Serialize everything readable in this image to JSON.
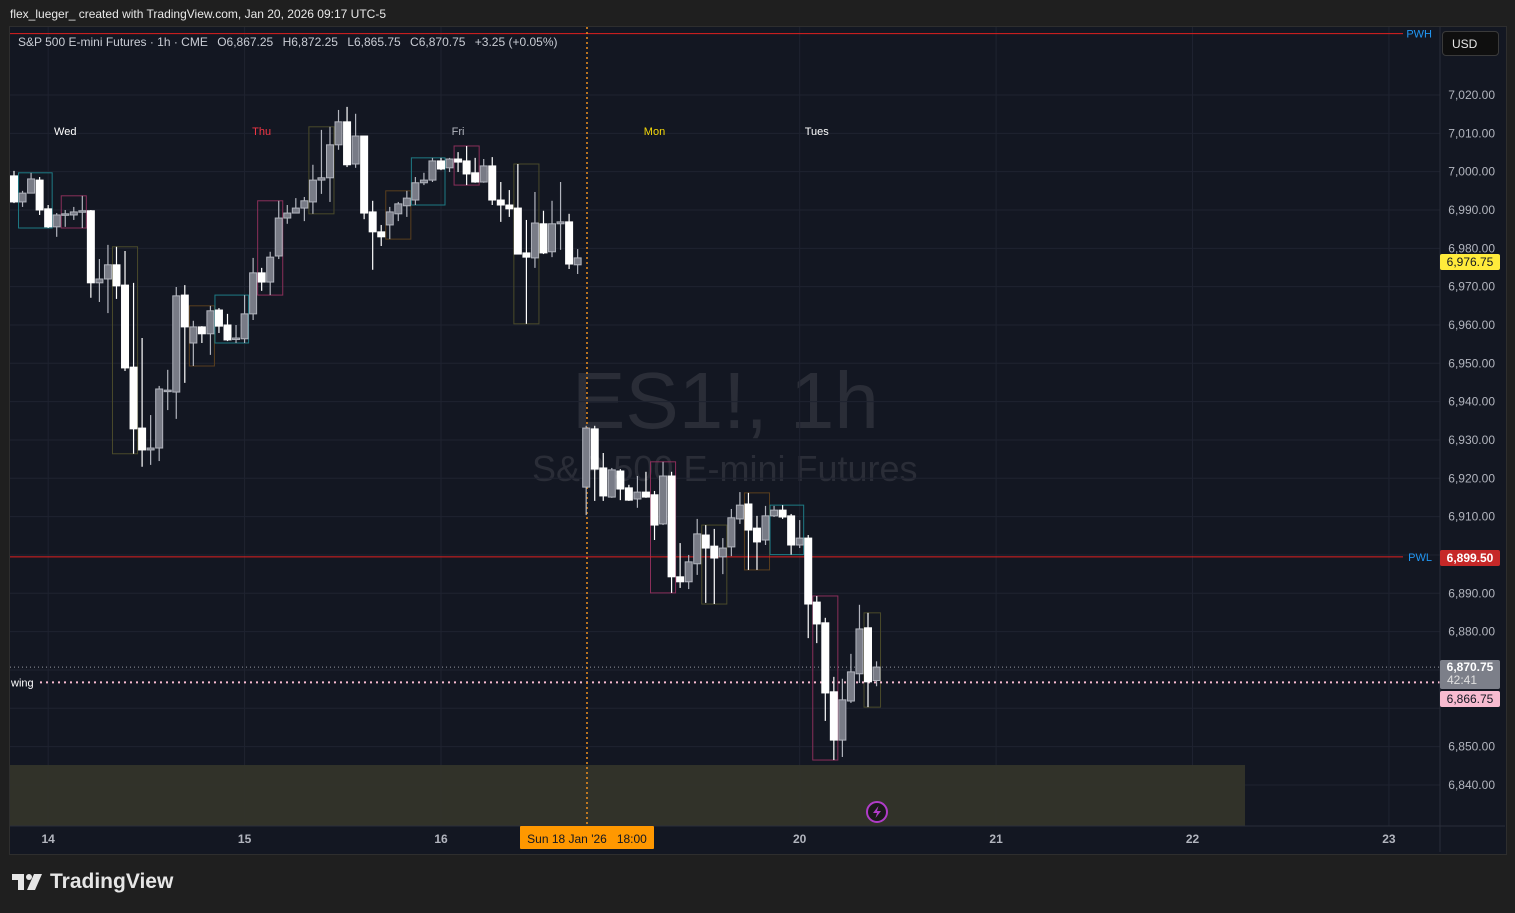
{
  "credit": "flex_lueger_ created with TradingView.com, Jan 20, 2026 09:17 UTC-5",
  "legend": {
    "symbol": "S&P 500 E-mini Futures · 1h · CME",
    "open": "O6,867.25",
    "high": "H6,872.25",
    "low": "L6,865.75",
    "close": "C6,870.75",
    "change": "+3.25 (+0.05%)"
  },
  "watermark": {
    "ticker": "ES1!, 1h",
    "name": "S&P 500 E-mini Futures"
  },
  "currency_button": "USD",
  "brand": "TradingView",
  "colors": {
    "background": "#131722",
    "down_candle": "#ffffff",
    "up_candle": "#787b86",
    "level_line": "#e01f1f",
    "level_label": "#2962ff",
    "session_line": "#f0901e",
    "zone": "#33342a",
    "swing": "#f8bbd0"
  },
  "chart_data": {
    "type": "candlestick",
    "interval": "1h",
    "ylim": [
      6830,
      7040
    ],
    "grid": true,
    "y_ticks": [
      "7,020.00",
      "7,010.00",
      "7,000.00",
      "6,990.00",
      "6,980.00",
      "6,970.00",
      "6,960.00",
      "6,950.00",
      "6,940.00",
      "6,930.00",
      "6,920.00",
      "6,910.00",
      "6,890.00",
      "6,880.00",
      "6,850.00",
      "6,840.00"
    ],
    "y_tick_values": [
      7020,
      7010,
      7000,
      6990,
      6980,
      6970,
      6960,
      6950,
      6940,
      6930,
      6920,
      6910,
      6890,
      6880,
      6850,
      6840
    ],
    "x_ticks": [
      "14",
      "15",
      "16",
      "20",
      "21",
      "22",
      "23"
    ],
    "day_labels": [
      {
        "text": "Wed",
        "color": "#ffffff"
      },
      {
        "text": "Thu",
        "color": "#f23645"
      },
      {
        "text": "Fri",
        "color": "#b2b5be"
      },
      {
        "text": "Mon",
        "color": "#f5d90a"
      },
      {
        "text": "Tues",
        "color": "#ffffff"
      }
    ],
    "candles_ohlc": [
      [
        6998.9,
        7000.2,
        6991.8,
        6992.1
      ],
      [
        6992.1,
        6995.0,
        6990.8,
        6994.4
      ],
      [
        6994.4,
        6999.7,
        6994.4,
        6998.1
      ],
      [
        6997.8,
        6998.6,
        6988.7,
        6990.0
      ],
      [
        6990.3,
        6991.3,
        6985.3,
        6985.6
      ],
      [
        6985.6,
        6989.2,
        6983.0,
        6988.7
      ],
      [
        6989.0,
        6990.0,
        6985.6,
        6989.0
      ],
      [
        6988.7,
        6990.8,
        6987.4,
        6989.5
      ],
      [
        6989.8,
        6993.7,
        6985.3,
        6989.8
      ],
      [
        6989.8,
        6990.0,
        6967.1,
        6971.0
      ],
      [
        6971.0,
        6977.2,
        6966.0,
        6972.0
      ],
      [
        6972.0,
        6980.9,
        6963.1,
        6975.7
      ],
      [
        6975.7,
        6980.4,
        6966.8,
        6970.2
      ],
      [
        6970.4,
        6979.3,
        6948.0,
        6948.8
      ],
      [
        6949.0,
        6971.0,
        6926.4,
        6932.9
      ],
      [
        6933.1,
        6956.6,
        6923.0,
        6927.4
      ],
      [
        6927.4,
        6936.5,
        6923.5,
        6927.9
      ],
      [
        6927.9,
        6944.1,
        6924.5,
        6943.3
      ],
      [
        6943.0,
        6948.3,
        6937.8,
        6943.0
      ],
      [
        6942.5,
        6969.9,
        6935.5,
        6967.6
      ],
      [
        6967.8,
        6970.4,
        6944.9,
        6959.5
      ],
      [
        6955.3,
        6961.1,
        6949.3,
        6959.5
      ],
      [
        6959.5,
        6959.7,
        6955.3,
        6957.7
      ],
      [
        6957.7,
        6965.0,
        6952.2,
        6963.7
      ],
      [
        6963.9,
        6964.4,
        6957.9,
        6959.7
      ],
      [
        6960.0,
        6962.9,
        6955.8,
        6956.1
      ],
      [
        6956.6,
        6960.0,
        6955.3,
        6956.6
      ],
      [
        6956.4,
        6967.8,
        6955.3,
        6962.9
      ],
      [
        6962.9,
        6977.5,
        6961.3,
        6973.6
      ],
      [
        6973.6,
        6974.9,
        6968.9,
        6971.2
      ],
      [
        6971.2,
        6979.1,
        6967.8,
        6977.7
      ],
      [
        6978.0,
        6992.4,
        6977.2,
        6987.9
      ],
      [
        6987.9,
        6991.3,
        6986.4,
        6989.2
      ],
      [
        6989.2,
        6993.1,
        6989.2,
        6990.5
      ],
      [
        6990.5,
        6993.4,
        6987.1,
        6992.4
      ],
      [
        6992.1,
        7001.8,
        6989.0,
        6997.8
      ],
      [
        6997.8,
        7010.9,
        6994.2,
        6998.4
      ],
      [
        6998.4,
        7011.7,
        6992.1,
        7007.0
      ],
      [
        7007.0,
        7016.1,
        7005.7,
        7013.0
      ],
      [
        7013.0,
        7016.9,
        7001.2,
        7001.8
      ],
      [
        7002.0,
        7015.1,
        7001.0,
        7009.3
      ],
      [
        7009.3,
        7009.3,
        6987.6,
        6989.2
      ],
      [
        6989.5,
        6992.4,
        6974.4,
        6984.3
      ],
      [
        6984.3,
        6986.1,
        6980.6,
        6983.0
      ],
      [
        6986.1,
        6990.8,
        6982.4,
        6989.5
      ],
      [
        6989.0,
        6992.1,
        6987.1,
        6991.6
      ],
      [
        6991.1,
        6995.0,
        6988.2,
        6993.1
      ],
      [
        6992.6,
        6998.6,
        6991.3,
        6997.1
      ],
      [
        6997.1,
        6999.7,
        6996.5,
        6997.8
      ],
      [
        6997.8,
        7003.6,
        6997.3,
        7002.8
      ],
      [
        7002.8,
        7003.6,
        7000.4,
        7000.7
      ],
      [
        7001.0,
        7003.6,
        6999.9,
        7003.3
      ],
      [
        7003.3,
        7005.1,
        6999.9,
        7002.5
      ],
      [
        7002.8,
        7006.7,
        6996.5,
        6999.4
      ],
      [
        6999.7,
        7003.6,
        6997.1,
        6997.3
      ],
      [
        6997.3,
        7003.3,
        6997.1,
        7001.5
      ],
      [
        7001.5,
        7003.8,
        6991.3,
        6992.6
      ],
      [
        6992.6,
        6997.3,
        6986.9,
        6991.3
      ],
      [
        6991.3,
        6995.2,
        6988.2,
        6990.3
      ],
      [
        6990.5,
        7002.0,
        6978.5,
        6978.5
      ],
      [
        6978.8,
        6987.4,
        6960.3,
        6977.7
      ],
      [
        6977.5,
        6994.7,
        6974.9,
        6986.6
      ],
      [
        6986.4,
        6989.8,
        6978.5,
        6978.8
      ],
      [
        6979.1,
        6992.4,
        6977.7,
        6986.4
      ],
      [
        6986.4,
        6997.3,
        6979.6,
        6986.9
      ],
      [
        6986.9,
        6989.0,
        6974.6,
        6975.9
      ],
      [
        6975.7,
        6979.8,
        6973.3,
        6977.5
      ],
      [
        6917.7,
        6933.7,
        6910.4,
        6933.1
      ],
      [
        6932.9,
        6933.7,
        6914.1,
        6922.4
      ],
      [
        6922.7,
        6926.6,
        6914.1,
        6915.4
      ],
      [
        6915.1,
        6922.7,
        6914.9,
        6922.2
      ],
      [
        6921.9,
        6922.4,
        6914.3,
        6917.2
      ],
      [
        6917.5,
        6918.3,
        6914.1,
        6914.3
      ],
      [
        6914.6,
        6920.6,
        6912.3,
        6916.4
      ],
      [
        6916.4,
        6921.7,
        6914.9,
        6915.1
      ],
      [
        6915.7,
        6916.7,
        6903.9,
        6907.8
      ],
      [
        6908.1,
        6924.3,
        6907.8,
        6920.6
      ],
      [
        6920.6,
        6921.7,
        6890.1,
        6894.3
      ],
      [
        6894.3,
        6903.1,
        6891.4,
        6893.0
      ],
      [
        6893.0,
        6900.0,
        6891.1,
        6898.2
      ],
      [
        6897.7,
        6909.4,
        6894.8,
        6905.5
      ],
      [
        6905.2,
        6907.8,
        6887.5,
        6901.8
      ],
      [
        6902.3,
        6906.8,
        6887.2,
        6899.2
      ],
      [
        6899.5,
        6904.4,
        6895.0,
        6901.8
      ],
      [
        6902.1,
        6912.0,
        6899.7,
        6909.7
      ],
      [
        6909.4,
        6916.4,
        6908.1,
        6913.0
      ],
      [
        6913.3,
        6916.2,
        6896.1,
        6906.5
      ],
      [
        6907.0,
        6910.2,
        6896.1,
        6903.4
      ],
      [
        6903.9,
        6912.8,
        6902.6,
        6910.2
      ],
      [
        6910.2,
        6912.8,
        6909.9,
        6911.7
      ],
      [
        6911.7,
        6913.0,
        6909.4,
        6909.9
      ],
      [
        6910.2,
        6910.7,
        6900.1,
        6902.6
      ],
      [
        6902.6,
        6909.1,
        6901.8,
        6904.4
      ],
      [
        6904.4,
        6905.2,
        6878.3,
        6887.2
      ],
      [
        6887.7,
        6889.3,
        6877.0,
        6882.0
      ],
      [
        6882.3,
        6883.6,
        6856.7,
        6864.0
      ],
      [
        6864.3,
        6868.2,
        6846.5,
        6851.7
      ],
      [
        6851.7,
        6867.7,
        6847.3,
        6862.2
      ],
      [
        6861.9,
        6874.2,
        6861.4,
        6869.5
      ],
      [
        6869.0,
        6887.0,
        6866.6,
        6880.7
      ],
      [
        6881.0,
        6884.9,
        6860.3,
        6866.9
      ],
      [
        6867.25,
        6872.25,
        6865.75,
        6870.75
      ]
    ],
    "range_boxes": [
      {
        "from": 2,
        "to": 5,
        "color": "#1e7b85"
      },
      {
        "from": 7,
        "to": 9,
        "color": "#8a2f5a"
      },
      {
        "from": 13,
        "to": 15,
        "color": "#4a4a2a"
      },
      {
        "from": 22,
        "to": 24,
        "color": "#5a3f1e"
      },
      {
        "from": 25,
        "to": 28,
        "color": "#1e7b85"
      },
      {
        "from": 30,
        "to": 32,
        "color": "#8a2f5a"
      },
      {
        "from": 36,
        "to": 38,
        "color": "#4a4a2a"
      },
      {
        "from": 45,
        "to": 47,
        "color": "#5a3f1e"
      },
      {
        "from": 48,
        "to": 51,
        "color": "#1e7b85"
      },
      {
        "from": 53,
        "to": 55,
        "color": "#8a2f5a"
      },
      {
        "from": 60,
        "to": 62,
        "color": "#4a4a2a"
      },
      {
        "from": 76,
        "to": 78,
        "color": "#8a2f5a"
      },
      {
        "from": 82,
        "to": 84,
        "color": "#4a4a2a"
      },
      {
        "from": 87,
        "to": 89,
        "color": "#5a3f1e"
      },
      {
        "from": 90,
        "to": 93,
        "color": "#1e7b85"
      },
      {
        "from": 95,
        "to": 97,
        "color": "#8a2f5a"
      },
      {
        "from": 101,
        "to": 102,
        "color": "#4a4a2a"
      }
    ],
    "levels": {
      "pwh": {
        "label": "PWH",
        "price": 7036
      },
      "pwl": {
        "label": "PWL",
        "price": 6899.5,
        "price_text": "6,899.50"
      },
      "swing": {
        "label": "wing",
        "price": 6866.75,
        "price_text": "6,866.75"
      },
      "indicator": {
        "price": 6976.75,
        "price_text": "6,976.75"
      },
      "last": {
        "price": 6870.75,
        "price_text": "6,870.75",
        "countdown": "42:41"
      }
    },
    "zone": {
      "top": 6845.2,
      "bottom": 6830
    },
    "session_marker": "Sun 18 Jan '26   18:00"
  }
}
